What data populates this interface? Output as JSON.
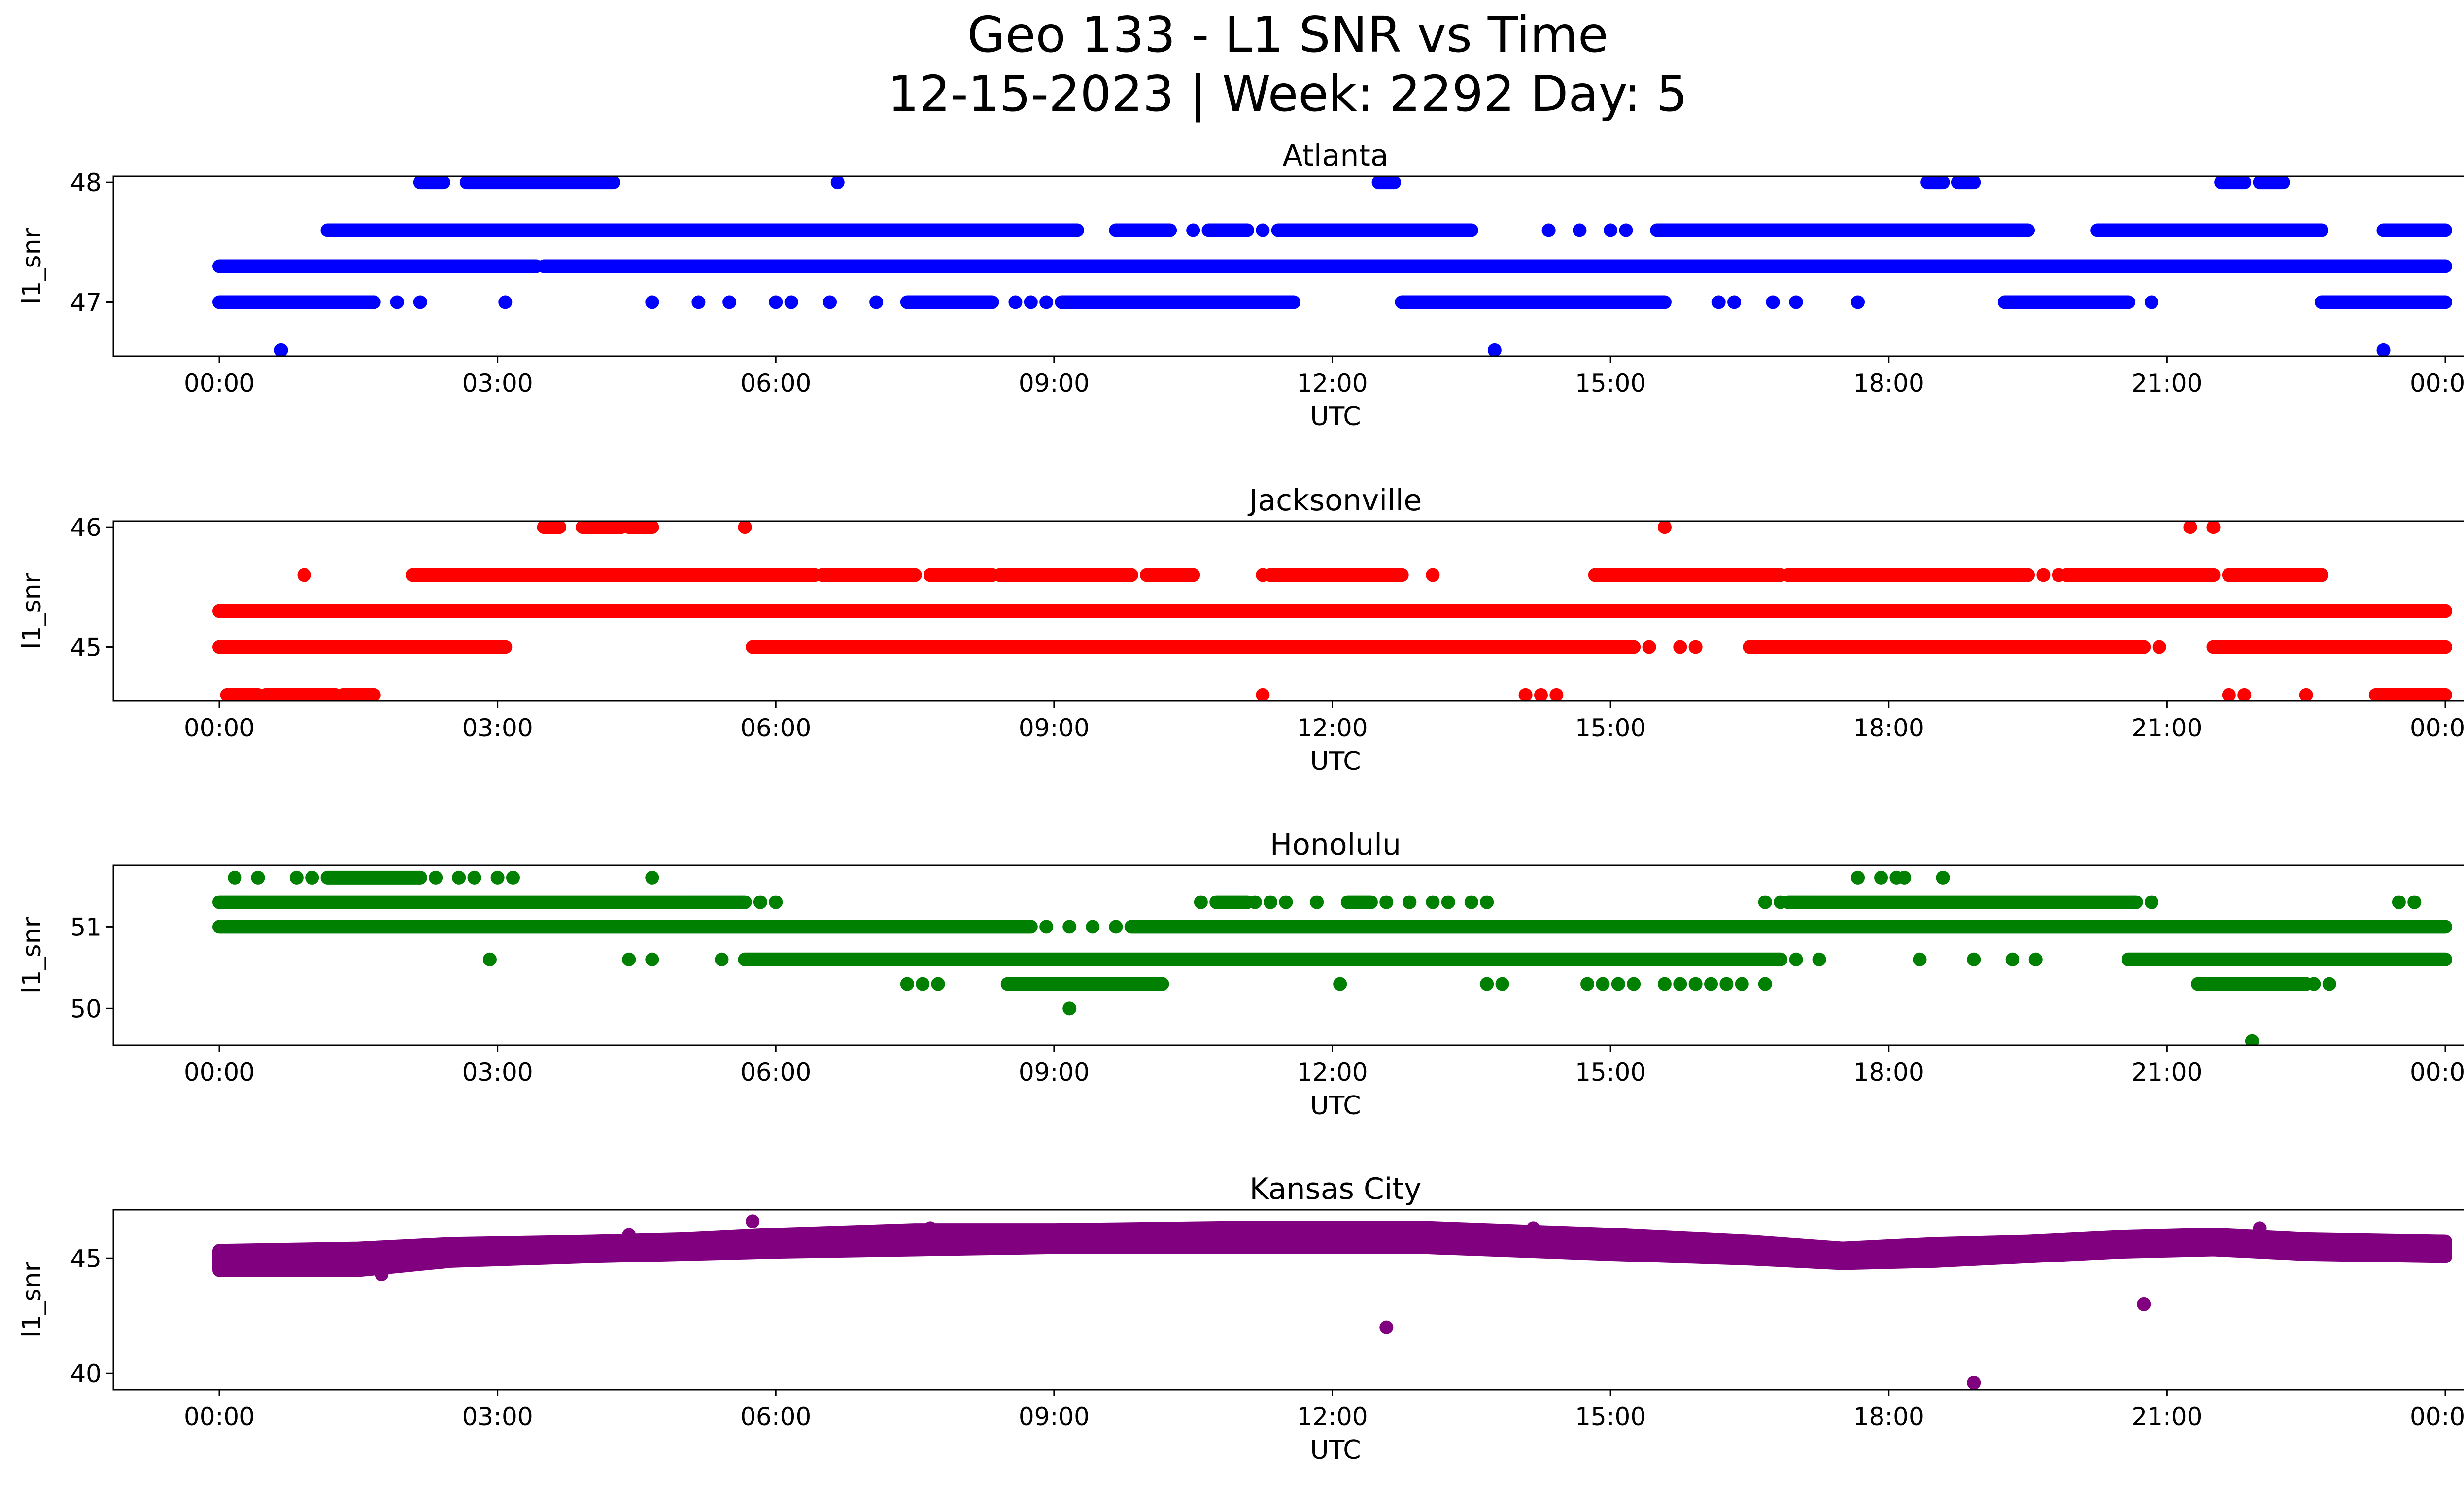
{
  "figure": {
    "title_line1": "Geo 133 - L1 SNR vs Time",
    "title_line2": "12-15-2023 | Week: 2292 Day: 5"
  },
  "chart_data": [
    {
      "type": "scatter",
      "title": "Atlanta",
      "xlabel": "UTC",
      "ylabel": "l1_snr",
      "color": "#0000ff",
      "xlim": [
        "00:00",
        "24:00"
      ],
      "xticks": [
        "00:00",
        "03:00",
        "06:00",
        "09:00",
        "12:00",
        "15:00",
        "18:00",
        "21:00",
        "00:00"
      ],
      "yticks": [
        47,
        48
      ],
      "ylim": [
        46.55,
        48.05
      ],
      "levels": [
        {
          "y": 48.0,
          "ranges": [
            [
              "02:10",
              "02:25"
            ],
            [
              "02:40",
              "04:15"
            ],
            [
              "12:30",
              "12:40"
            ],
            [
              "18:25",
              "18:35"
            ],
            [
              "18:45",
              "18:55"
            ],
            [
              "21:35",
              "21:50"
            ],
            [
              "22:00",
              "22:15"
            ]
          ],
          "points": [
            "06:40"
          ]
        },
        {
          "y": 47.6,
          "ranges": [
            [
              "01:10",
              "09:15"
            ],
            [
              "09:40",
              "10:15"
            ],
            [
              "10:40",
              "11:05"
            ],
            [
              "11:25",
              "13:30"
            ],
            [
              "15:30",
              "19:30"
            ],
            [
              "20:15",
              "22:40"
            ],
            [
              "23:20",
              "24:00"
            ]
          ],
          "points": [
            "10:30",
            "11:15",
            "14:20",
            "14:40",
            "15:00",
            "15:10"
          ]
        },
        {
          "y": 47.3,
          "ranges": [
            [
              "00:00",
              "03:25"
            ],
            [
              "03:30",
              "24:00"
            ]
          ],
          "points": []
        },
        {
          "y": 47.0,
          "ranges": [
            [
              "00:00",
              "01:40"
            ],
            [
              "07:25",
              "08:20"
            ],
            [
              "09:05",
              "11:35"
            ],
            [
              "12:45",
              "15:35"
            ],
            [
              "19:15",
              "20:35"
            ],
            [
              "22:40",
              "24:00"
            ]
          ],
          "points": [
            "01:55",
            "02:10",
            "03:05",
            "04:40",
            "05:10",
            "05:30",
            "06:00",
            "06:10",
            "06:35",
            "07:05",
            "08:35",
            "08:45",
            "08:55",
            "09:40",
            "16:10",
            "16:20",
            "16:45",
            "17:00",
            "17:40",
            "20:50"
          ]
        },
        {
          "y": 46.6,
          "ranges": [],
          "points": [
            "00:40",
            "13:45",
            "23:20"
          ]
        }
      ]
    },
    {
      "type": "scatter",
      "title": "Jacksonville",
      "xlabel": "UTC",
      "ylabel": "l1_snr",
      "color": "#ff0000",
      "xlim": [
        "00:00",
        "24:00"
      ],
      "xticks": [
        "00:00",
        "03:00",
        "06:00",
        "09:00",
        "12:00",
        "15:00",
        "18:00",
        "21:00",
        "00:00"
      ],
      "yticks": [
        45,
        46
      ],
      "ylim": [
        44.55,
        46.05
      ],
      "levels": [
        {
          "y": 46.0,
          "ranges": [
            [
              "03:30",
              "03:40"
            ],
            [
              "03:55",
              "04:20"
            ],
            [
              "04:25",
              "04:40"
            ]
          ],
          "points": [
            "05:40",
            "15:35",
            "21:15",
            "21:30"
          ]
        },
        {
          "y": 45.6,
          "ranges": [
            [
              "02:05",
              "06:25"
            ],
            [
              "06:30",
              "07:30"
            ],
            [
              "07:40",
              "08:20"
            ],
            [
              "08:25",
              "09:50"
            ],
            [
              "10:00",
              "10:30"
            ],
            [
              "11:20",
              "12:45"
            ],
            [
              "14:50",
              "16:50"
            ],
            [
              "16:55",
              "19:30"
            ],
            [
              "19:55",
              "21:30"
            ],
            [
              "21:40",
              "22:40"
            ]
          ],
          "points": [
            "00:55",
            "11:15",
            "13:05",
            "19:40",
            "19:50"
          ]
        },
        {
          "y": 45.3,
          "ranges": [
            [
              "00:00",
              "24:00"
            ]
          ],
          "points": []
        },
        {
          "y": 45.0,
          "ranges": [
            [
              "00:00",
              "03:05"
            ],
            [
              "05:45",
              "15:15"
            ],
            [
              "16:30",
              "20:45"
            ],
            [
              "21:30",
              "24:00"
            ]
          ],
          "points": [
            "15:25",
            "15:45",
            "15:55",
            "20:55"
          ]
        },
        {
          "y": 44.6,
          "ranges": [
            [
              "00:05",
              "00:25"
            ],
            [
              "00:30",
              "01:15"
            ],
            [
              "01:20",
              "01:40"
            ],
            [
              "23:15",
              "24:00"
            ]
          ],
          "points": [
            "11:15",
            "14:05",
            "14:15",
            "14:25",
            "21:40",
            "21:50",
            "22:30"
          ]
        }
      ]
    },
    {
      "type": "scatter",
      "title": "Honolulu",
      "xlabel": "UTC",
      "ylabel": "l1_snr",
      "color": "#008000",
      "xlim": [
        "00:00",
        "24:00"
      ],
      "xticks": [
        "00:00",
        "03:00",
        "06:00",
        "09:00",
        "12:00",
        "15:00",
        "18:00",
        "21:00",
        "00:00"
      ],
      "yticks": [
        50,
        51
      ],
      "ylim": [
        49.55,
        51.75
      ],
      "levels": [
        {
          "y": 51.6,
          "ranges": [
            [
              "01:10",
              "02:10"
            ]
          ],
          "points": [
            "00:10",
            "00:25",
            "00:50",
            "01:00",
            "02:20",
            "02:35",
            "02:45",
            "03:00",
            "03:10",
            "04:40",
            "17:40",
            "17:55",
            "18:05",
            "18:10",
            "18:35"
          ]
        },
        {
          "y": 51.3,
          "ranges": [
            [
              "00:00",
              "05:40"
            ],
            [
              "10:45",
              "11:05"
            ],
            [
              "12:10",
              "12:25"
            ],
            [
              "16:55",
              "20:40"
            ]
          ],
          "points": [
            "05:50",
            "06:00",
            "10:35",
            "11:10",
            "11:20",
            "11:30",
            "11:50",
            "12:35",
            "12:50",
            "13:05",
            "13:15",
            "13:30",
            "13:40",
            "16:40",
            "16:50",
            "20:50",
            "23:30",
            "23:40"
          ]
        },
        {
          "y": 51.0,
          "ranges": [
            [
              "00:00",
              "08:45"
            ],
            [
              "09:50",
              "24:00"
            ]
          ],
          "points": [
            "08:55",
            "09:10",
            "09:25",
            "09:40"
          ]
        },
        {
          "y": 50.6,
          "ranges": [
            [
              "05:40",
              "16:50"
            ],
            [
              "20:35",
              "24:00"
            ]
          ],
          "points": [
            "02:55",
            "04:25",
            "04:40",
            "05:25",
            "17:00",
            "17:15",
            "18:20",
            "18:55",
            "19:20",
            "19:35"
          ]
        },
        {
          "y": 50.3,
          "ranges": [
            [
              "08:30",
              "10:10"
            ],
            [
              "21:20",
              "22:30"
            ]
          ],
          "points": [
            "07:25",
            "07:35",
            "07:45",
            "12:05",
            "13:40",
            "13:50",
            "14:45",
            "14:55",
            "15:05",
            "15:15",
            "15:35",
            "15:45",
            "15:55",
            "16:05",
            "16:15",
            "16:25",
            "16:40",
            "22:35",
            "22:45"
          ]
        },
        {
          "y": 50.0,
          "ranges": [],
          "points": [
            "09:10"
          ]
        },
        {
          "y": 49.6,
          "ranges": [],
          "points": [
            "21:55"
          ]
        }
      ]
    },
    {
      "type": "scatter",
      "title": "Kansas City",
      "xlabel": "UTC",
      "ylabel": "l1_snr",
      "color": "#800080",
      "xlim": [
        "00:00",
        "24:00"
      ],
      "xticks": [
        "00:00",
        "03:00",
        "06:00",
        "09:00",
        "12:00",
        "15:00",
        "18:00",
        "21:00",
        "00:00"
      ],
      "yticks": [
        40,
        45
      ],
      "ylim": [
        39.3,
        47.1
      ],
      "band": [
        {
          "t": "00:00",
          "lo": 44.6,
          "hi": 45.2
        },
        {
          "t": "01:30",
          "lo": 44.6,
          "hi": 45.3
        },
        {
          "t": "02:30",
          "lo": 45.0,
          "hi": 45.5
        },
        {
          "t": "04:00",
          "lo": 45.2,
          "hi": 45.6
        },
        {
          "t": "05:00",
          "lo": 45.3,
          "hi": 45.7
        },
        {
          "t": "06:00",
          "lo": 45.4,
          "hi": 45.9
        },
        {
          "t": "07:30",
          "lo": 45.5,
          "hi": 46.1
        },
        {
          "t": "09:00",
          "lo": 45.6,
          "hi": 46.1
        },
        {
          "t": "11:00",
          "lo": 45.6,
          "hi": 46.2
        },
        {
          "t": "13:00",
          "lo": 45.6,
          "hi": 46.2
        },
        {
          "t": "15:00",
          "lo": 45.3,
          "hi": 45.9
        },
        {
          "t": "16:30",
          "lo": 45.1,
          "hi": 45.6
        },
        {
          "t": "17:30",
          "lo": 44.9,
          "hi": 45.3
        },
        {
          "t": "18:30",
          "lo": 45.0,
          "hi": 45.5
        },
        {
          "t": "19:30",
          "lo": 45.2,
          "hi": 45.6
        },
        {
          "t": "20:30",
          "lo": 45.4,
          "hi": 45.8
        },
        {
          "t": "21:30",
          "lo": 45.5,
          "hi": 45.9
        },
        {
          "t": "22:30",
          "lo": 45.3,
          "hi": 45.7
        },
        {
          "t": "24:00",
          "lo": 45.2,
          "hi": 45.6
        }
      ],
      "outliers": [
        {
          "t": "01:45",
          "y": 44.3
        },
        {
          "t": "04:25",
          "y": 46.0
        },
        {
          "t": "05:45",
          "y": 46.6
        },
        {
          "t": "07:40",
          "y": 46.3
        },
        {
          "t": "12:35",
          "y": 42.0
        },
        {
          "t": "14:10",
          "y": 46.3
        },
        {
          "t": "18:55",
          "y": 39.6
        },
        {
          "t": "20:45",
          "y": 43.0
        },
        {
          "t": "22:00",
          "y": 46.3
        }
      ]
    }
  ]
}
